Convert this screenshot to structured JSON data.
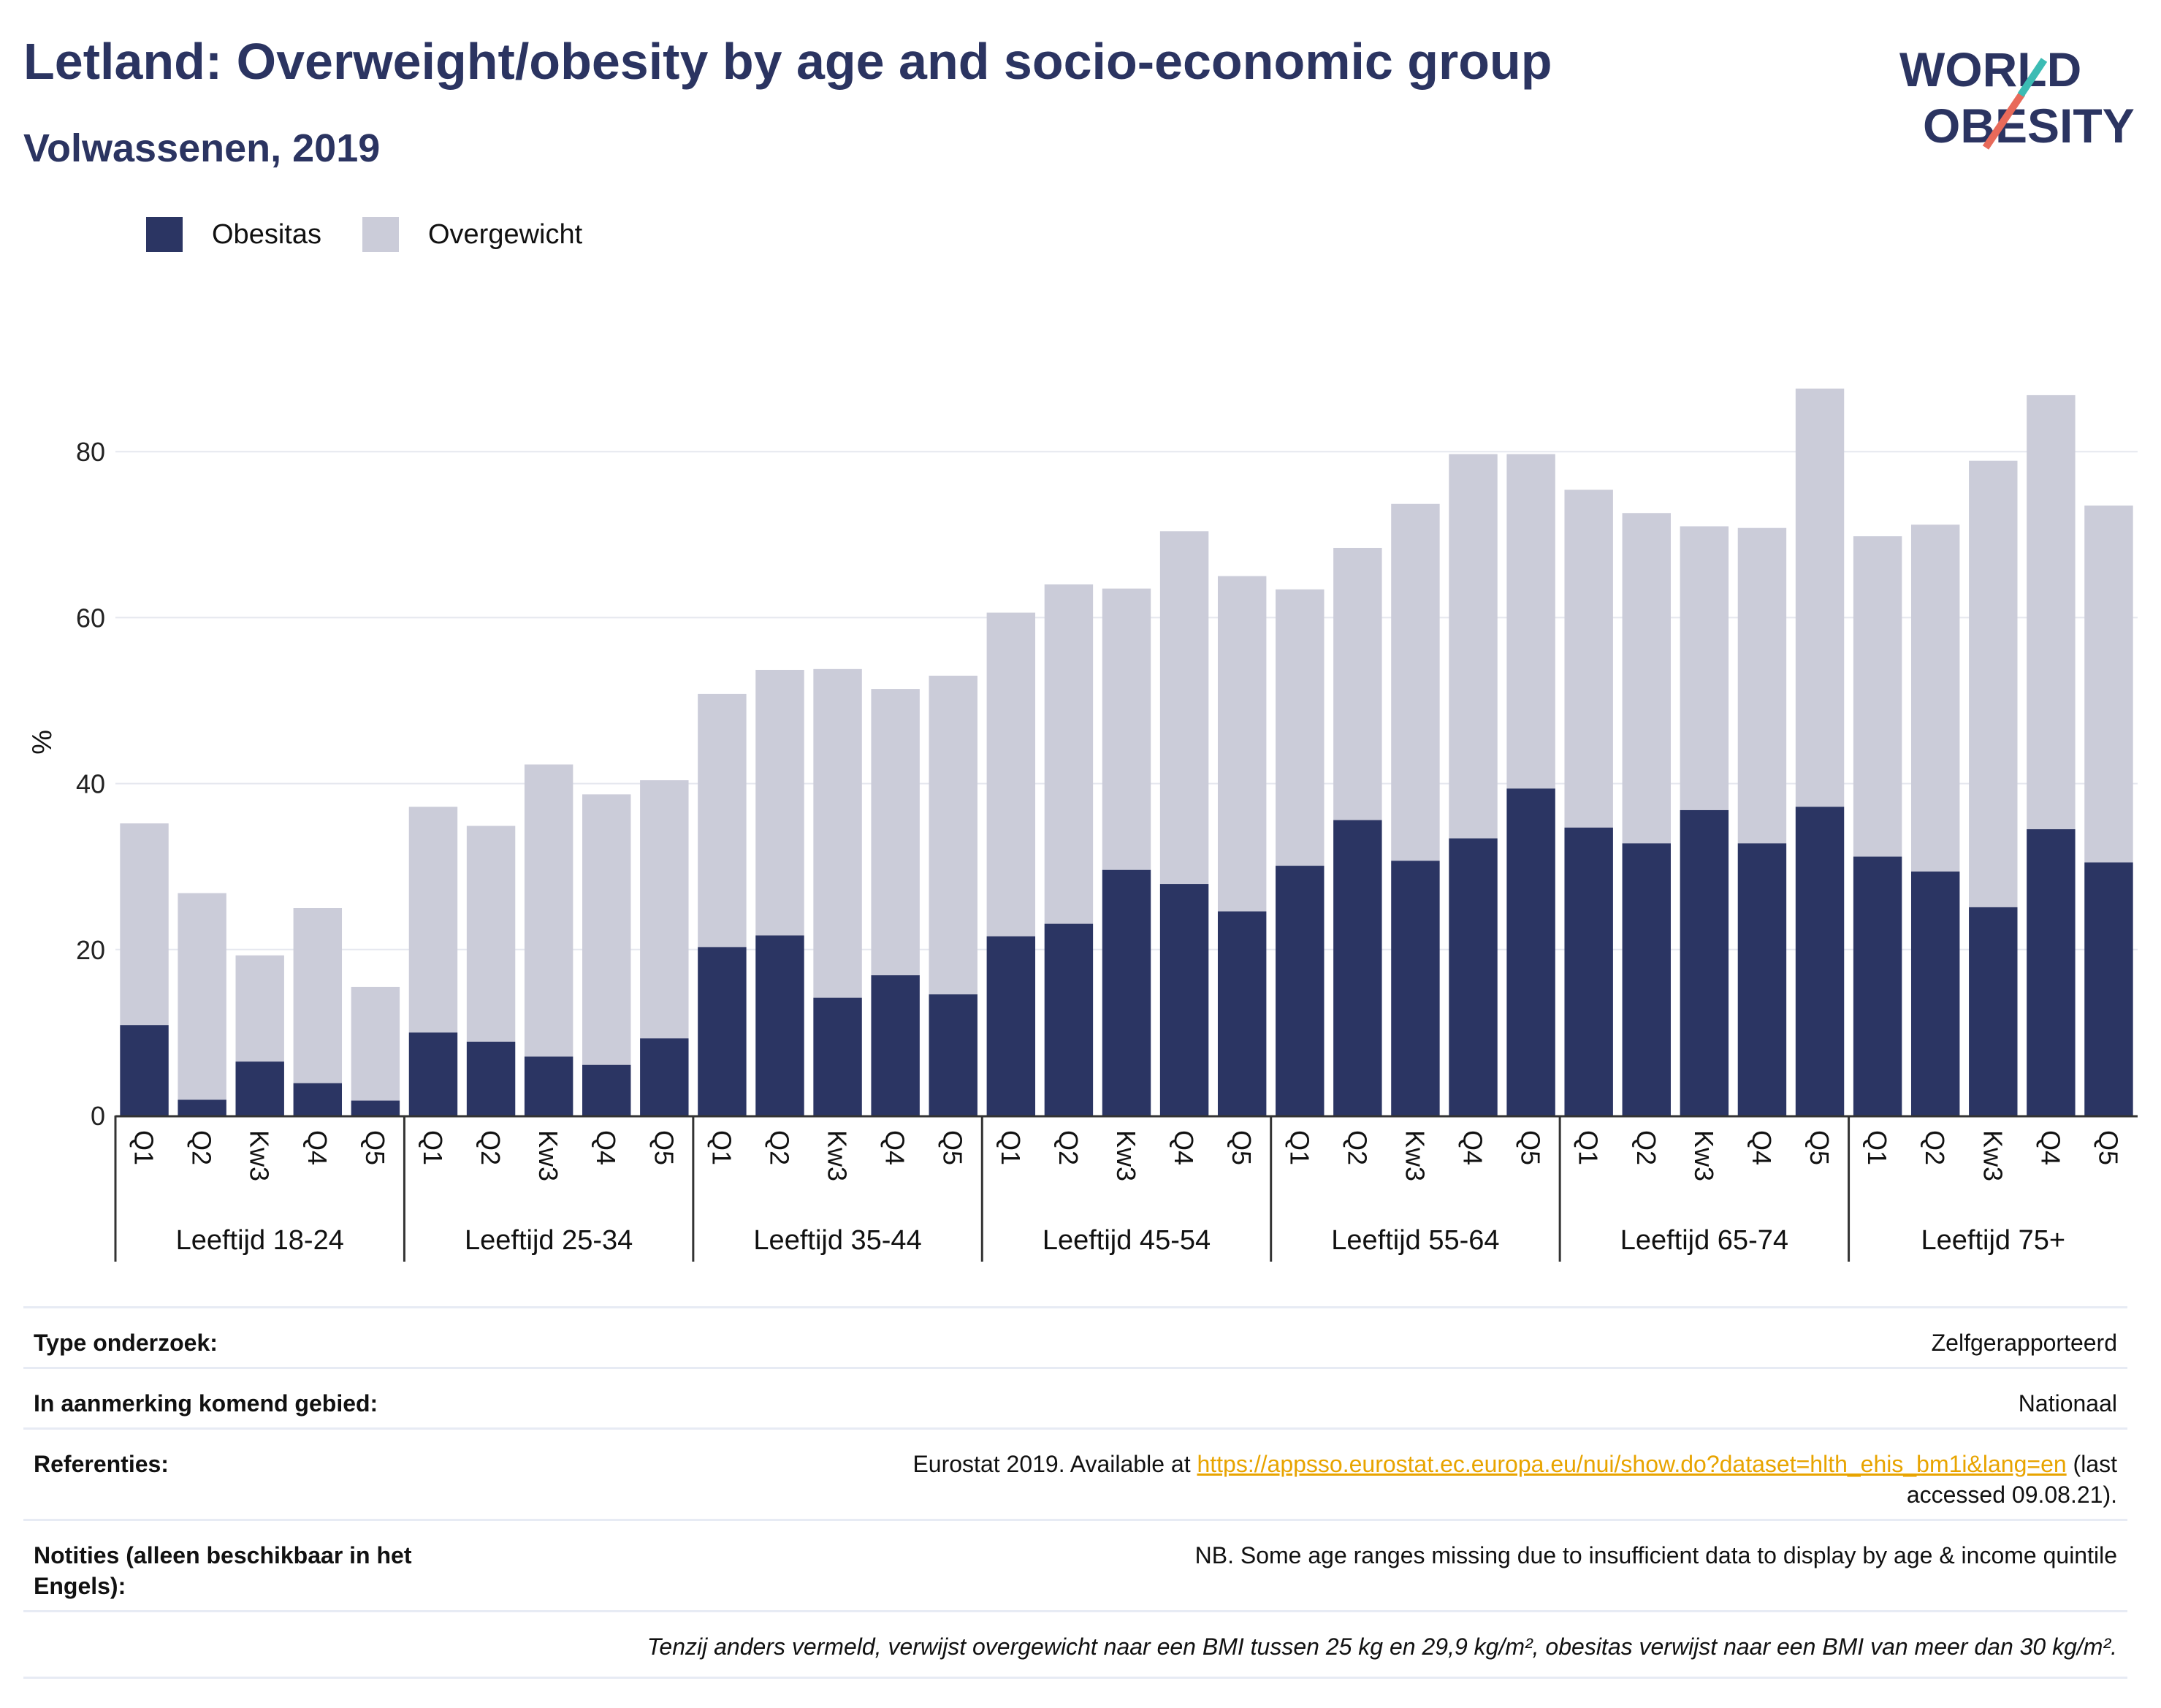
{
  "title": "Letland: Overweight/obesity by age and socio-economic group",
  "subtitle": "Volwassenen, 2019",
  "logo": {
    "line1": "WORLD",
    "line2": "OBESITY"
  },
  "legend": {
    "obesity": "Obesitas",
    "overweight": "Overgewicht"
  },
  "colors": {
    "obesity": "#2b3563",
    "overweight": "#cbccd9",
    "title": "#2b3461",
    "link": "#e8a400"
  },
  "chart_data": {
    "type": "bar",
    "stacked": true,
    "ylabel": "%",
    "xlabel": "",
    "ylim": [
      0,
      90
    ],
    "yticks": [
      0,
      20,
      40,
      60,
      80
    ],
    "grid": true,
    "legend_position": "top-left",
    "groups": [
      "Leeftijd 18-24",
      "Leeftijd 25-34",
      "Leeftijd 35-44",
      "Leeftijd 45-54",
      "Leeftijd 55-64",
      "Leeftijd 65-74",
      "Leeftijd 75+"
    ],
    "categories": [
      "Q1",
      "Q2",
      "Kw3",
      "Q4",
      "Q5"
    ],
    "series": [
      {
        "name": "Obesitas",
        "values": [
          [
            10.9,
            1.9,
            6.5,
            3.9,
            1.8
          ],
          [
            10.0,
            8.9,
            7.1,
            6.1,
            9.3
          ],
          [
            20.3,
            21.7,
            14.2,
            16.9,
            14.6
          ],
          [
            21.6,
            23.1,
            29.6,
            27.9,
            24.6
          ],
          [
            30.1,
            35.6,
            30.7,
            33.4,
            39.4
          ],
          [
            34.7,
            32.8,
            36.8,
            32.8,
            37.2
          ],
          [
            31.2,
            29.4,
            25.1,
            34.5,
            30.5
          ]
        ]
      },
      {
        "name": "Overgewicht",
        "values": [
          [
            24.3,
            24.9,
            12.8,
            21.1,
            13.7
          ],
          [
            27.2,
            26.0,
            35.2,
            32.6,
            31.1
          ],
          [
            30.5,
            32.0,
            39.6,
            34.5,
            38.4
          ],
          [
            39.0,
            40.9,
            33.9,
            42.5,
            40.4
          ],
          [
            33.3,
            32.8,
            43.0,
            46.3,
            40.3
          ],
          [
            40.7,
            39.8,
            34.2,
            38.0,
            50.4
          ],
          [
            38.6,
            41.8,
            53.8,
            52.3,
            43.0
          ]
        ]
      }
    ]
  },
  "meta": {
    "survey_type_label": "Type onderzoek:",
    "survey_type_value": "Zelfgerapporteerd",
    "area_label": "In aanmerking komend gebied:",
    "area_value": "Nationaal",
    "references_label": "Referenties:",
    "references_pre": "Eurostat 2019. Available at ",
    "references_link": "https://appsso.eurostat.ec.europa.eu/nui/show.do?dataset=hlth_ehis_bm1i&lang=en",
    "references_post": " (last accessed 09.08.21).",
    "notes_label": "Notities (alleen beschikbaar in het Engels):",
    "notes_value": "NB. Some age ranges missing due to insufficient data to display by age & income quintile",
    "footnote": "Tenzij anders vermeld, verwijst overgewicht naar een BMI tussen 25 kg en 29,9 kg/m², obesitas verwijst naar een BMI van meer dan 30 kg/m²."
  }
}
